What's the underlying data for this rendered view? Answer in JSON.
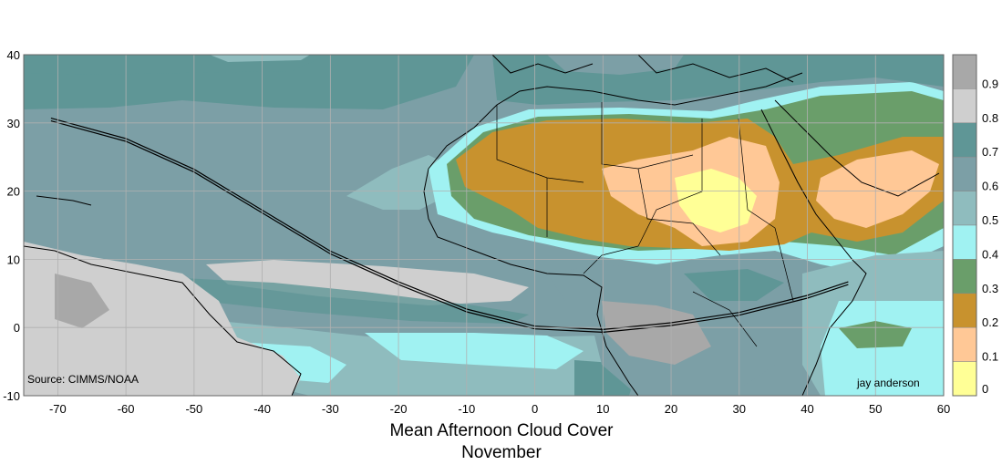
{
  "map": {
    "title": "Mean Afternoon Cloud Cover",
    "subtitle": "November",
    "source": "Source: CIMMS/NOAA",
    "author": "jay anderson",
    "x_ticks": [
      "-70",
      "-60",
      "-50",
      "-40",
      "-30",
      "-20",
      "-10",
      "0",
      "10",
      "20",
      "30",
      "40",
      "50",
      "60"
    ],
    "y_ticks": [
      "40",
      "30",
      "20",
      "10",
      "0",
      "-10"
    ]
  },
  "legend": {
    "labels": [
      "0.9",
      "0.8",
      "0.7",
      "0.6",
      "0.5",
      "0.4",
      "0.3",
      "0.2",
      "0.1",
      "0"
    ],
    "colors": [
      "#a8a8a8",
      "#cfcfcf",
      "#5f9696",
      "#7c9fa6",
      "#8fbcbe",
      "#a0f2f2",
      "#6a9e6a",
      "#c8922e",
      "#ffc896",
      "#ffff96"
    ]
  },
  "chart_data": {
    "type": "heatmap",
    "title": "Mean Afternoon Cloud Cover",
    "subtitle": "November",
    "xlim": [
      -75,
      60
    ],
    "ylim": [
      -10,
      40
    ],
    "legend_position": "right",
    "grid": true,
    "levels": [
      0,
      0.1,
      0.2,
      0.3,
      0.4,
      0.5,
      0.6,
      0.7,
      0.8,
      0.9
    ],
    "eclipse_path": {
      "x": [
        -71,
        -60,
        -50,
        -40,
        -30,
        -20,
        -10,
        0,
        10,
        20,
        30,
        40,
        46
      ],
      "y": [
        30.5,
        27.5,
        23,
        17,
        11,
        6.5,
        2.5,
        0,
        -0.5,
        0.5,
        2,
        4.5,
        6.5
      ]
    }
  }
}
